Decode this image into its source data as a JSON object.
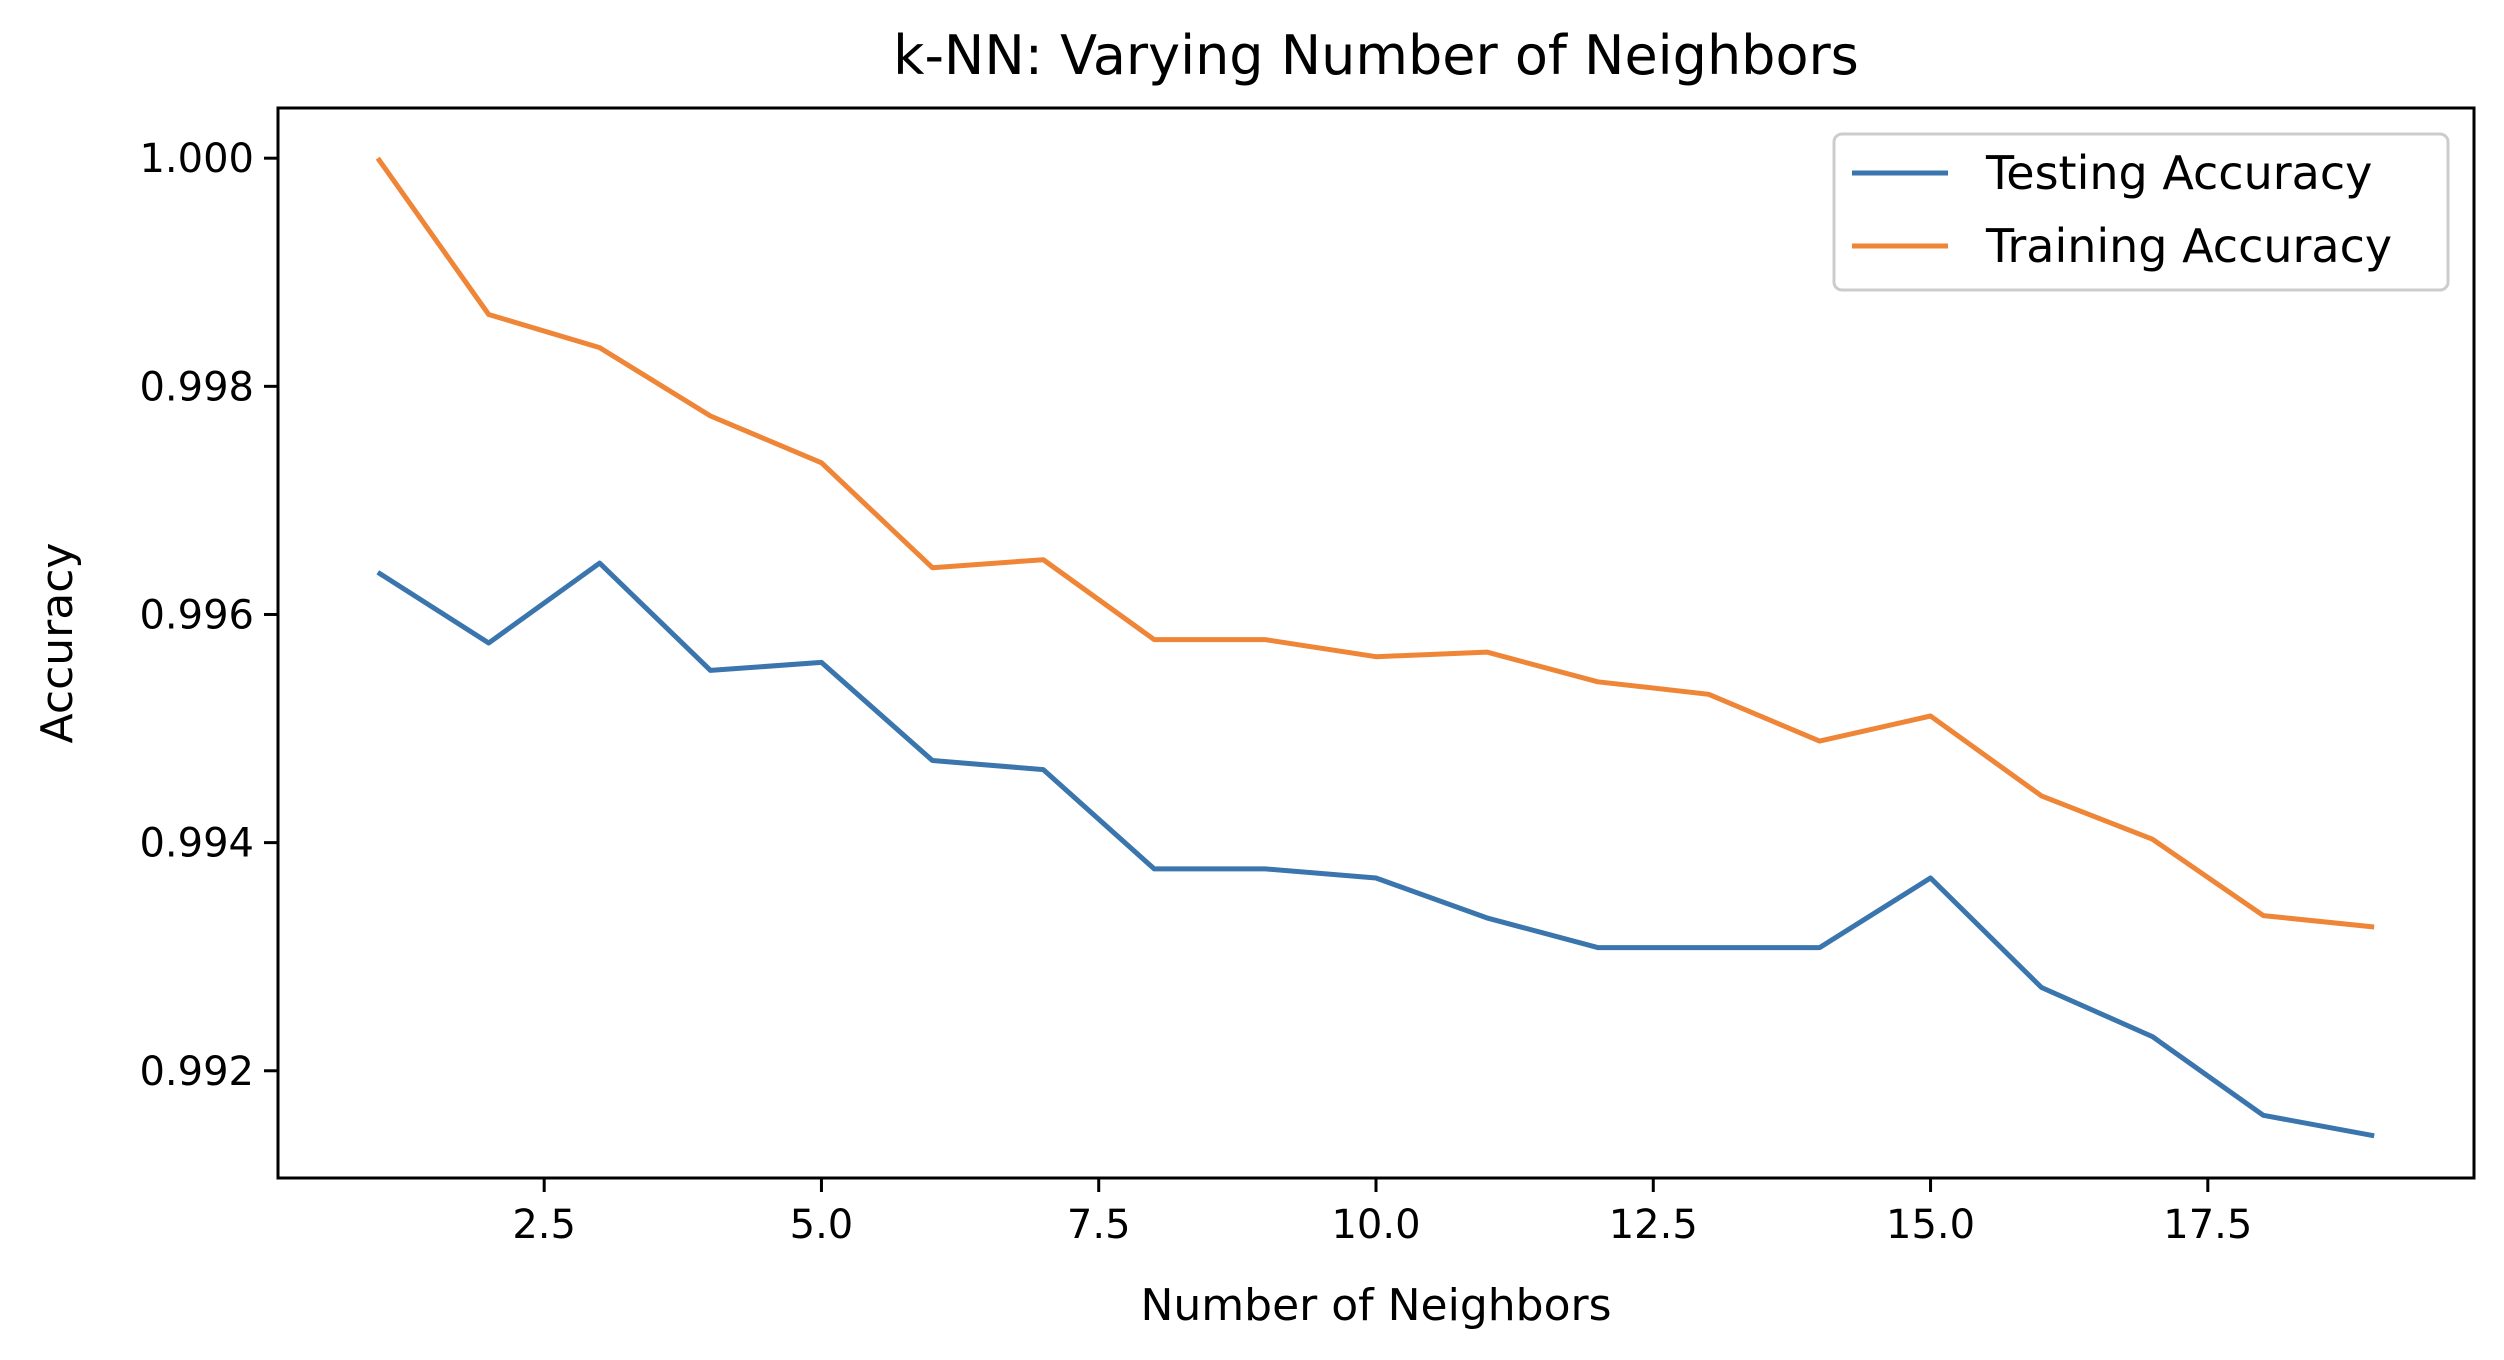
{
  "chart_data": {
    "type": "line",
    "title": "k-NN: Varying Number of Neighbors",
    "xlabel": "Number of Neighbors",
    "ylabel": "Accuracy",
    "x": [
      1,
      2,
      3,
      4,
      5,
      6,
      7,
      8,
      9,
      10,
      11,
      12,
      13,
      14,
      15,
      16,
      17,
      18,
      19
    ],
    "series": [
      {
        "name": "Testing Accuracy",
        "color": "#3a75ae",
        "values": [
          0.99637,
          0.99575,
          0.99645,
          0.99551,
          0.99558,
          0.99472,
          0.99464,
          0.99377,
          0.99377,
          0.99369,
          0.99334,
          0.99308,
          0.99308,
          0.99308,
          0.99369,
          0.99273,
          0.9923,
          0.99161,
          0.99143
        ]
      },
      {
        "name": "Training Accuracy",
        "color": "#ef8536",
        "values": [
          1.0,
          0.99863,
          0.99834,
          0.99774,
          0.99733,
          0.99641,
          0.99648,
          0.99578,
          0.99578,
          0.99563,
          0.99567,
          0.99541,
          0.9953,
          0.99489,
          0.99511,
          0.99441,
          0.99403,
          0.99336,
          0.99326
        ]
      }
    ],
    "xlim": [
      0.1,
      19.9
    ],
    "ylim": [
      0.99106,
      1.00044
    ],
    "xticks": [
      2.5,
      5.0,
      7.5,
      10.0,
      12.5,
      15.0,
      17.5
    ],
    "xtick_labels": [
      "2.5",
      "5.0",
      "7.5",
      "10.0",
      "12.5",
      "15.0",
      "17.5"
    ],
    "yticks": [
      0.992,
      0.994,
      0.996,
      0.998,
      1.0
    ],
    "ytick_labels": [
      "0.992",
      "0.994",
      "0.996",
      "0.998",
      "1.000"
    ],
    "grid": false,
    "legend_position": "top-right"
  }
}
